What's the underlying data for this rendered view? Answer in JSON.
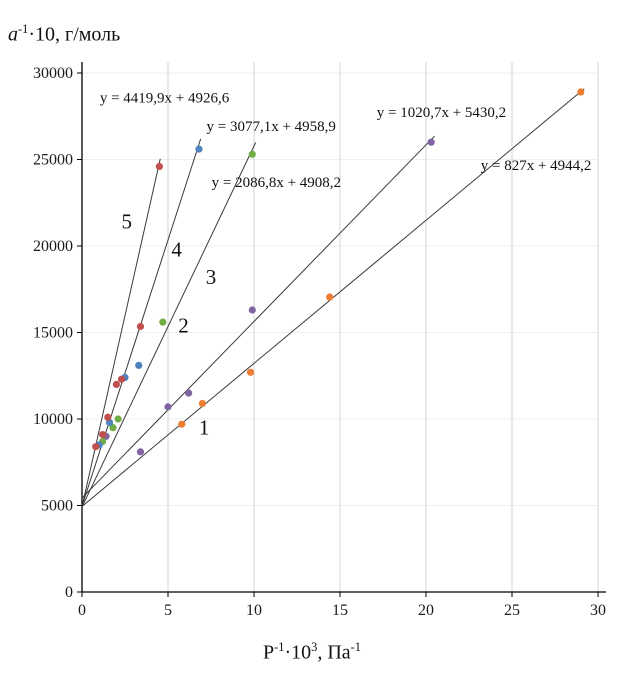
{
  "axes": {
    "y_title": {
      "base": "a",
      "sup": "-1",
      "rest": "·10, г/моль"
    },
    "x_title": {
      "base": "P",
      "sup1": "-1",
      "mid": "·10",
      "sup2": "3",
      "rest": ", Па",
      "sup3": "-1"
    }
  },
  "chart_data": {
    "type": "scatter",
    "title": "",
    "xlabel": "P^-1 · 10^3, Па^-1",
    "ylabel": "a^-1 · 10, г/моль",
    "xlim": [
      0,
      30
    ],
    "ylim": [
      0,
      30000
    ],
    "x_ticks": [
      0,
      5,
      10,
      15,
      20,
      25,
      30
    ],
    "y_ticks": [
      0,
      5000,
      10000,
      15000,
      20000,
      25000,
      30000
    ],
    "grid": true,
    "legend": "none",
    "series": [
      {
        "label": "1",
        "color": "#ED7D31",
        "equation": "y = 827x + 4944,2",
        "slope": 827,
        "intercept": 4944.2,
        "line_end_x": 29.2,
        "points": [
          [
            5.8,
            9700
          ],
          [
            7.0,
            10900
          ],
          [
            9.8,
            12700
          ],
          [
            14.4,
            17050
          ],
          [
            29.0,
            28900
          ]
        ]
      },
      {
        "label": "2",
        "color": "#8064A2",
        "equation": "y = 1020,7x + 5430,2",
        "slope": 1020.7,
        "intercept": 5430.2,
        "line_end_x": 20.5,
        "points": [
          [
            1.4,
            9000
          ],
          [
            3.4,
            8100
          ],
          [
            5.0,
            10700
          ],
          [
            6.2,
            11500
          ],
          [
            9.9,
            16300
          ],
          [
            20.3,
            26000
          ]
        ]
      },
      {
        "label": "3",
        "color": "#70AD47",
        "equation": "y = 2086,8x + 4908,2",
        "slope": 2086.8,
        "intercept": 4908.2,
        "line_end_x": 10.1,
        "points": [
          [
            1.2,
            8700
          ],
          [
            1.8,
            9500
          ],
          [
            2.1,
            10000
          ],
          [
            4.7,
            15600
          ],
          [
            9.9,
            25300
          ]
        ]
      },
      {
        "label": "4",
        "color": "#4F81BD",
        "equation": "y = 3077,1x + 4958,9",
        "slope": 3077.1,
        "intercept": 4958.9,
        "line_end_x": 6.9,
        "points": [
          [
            1.0,
            8500
          ],
          [
            1.6,
            9800
          ],
          [
            2.5,
            12400
          ],
          [
            3.3,
            13100
          ],
          [
            6.8,
            25600
          ]
        ]
      },
      {
        "label": "5",
        "color": "#C0504D",
        "equation": "y = 4419,9x + 4926,6",
        "slope": 4419.9,
        "intercept": 4926.6,
        "line_end_x": 4.55,
        "points": [
          [
            0.8,
            8400
          ],
          [
            1.2,
            9100
          ],
          [
            1.5,
            10100
          ],
          [
            2.0,
            12000
          ],
          [
            2.3,
            12300
          ],
          [
            3.4,
            15350
          ],
          [
            4.5,
            24600
          ]
        ]
      }
    ],
    "annotations": [
      {
        "text": "y = 4419,9x + 4926,6",
        "x": 4.8,
        "y": 28300,
        "kind": "equation"
      },
      {
        "text": "y = 3077,1x + 4958,9",
        "x": 11.0,
        "y": 26650,
        "kind": "equation"
      },
      {
        "text": "y = 1020,7x + 5430,2",
        "x": 20.9,
        "y": 27450,
        "kind": "equation"
      },
      {
        "text": "y = 2086,8x + 4908,2",
        "x": 11.3,
        "y": 23400,
        "kind": "equation"
      },
      {
        "text": "y = 827x + 4944,2",
        "x": 26.4,
        "y": 24400,
        "kind": "equation"
      },
      {
        "text": "5",
        "x": 2.6,
        "y": 21000,
        "kind": "series-number"
      },
      {
        "text": "4",
        "x": 5.5,
        "y": 19400,
        "kind": "series-number"
      },
      {
        "text": "3",
        "x": 7.5,
        "y": 17800,
        "kind": "series-number"
      },
      {
        "text": "2",
        "x": 5.9,
        "y": 15000,
        "kind": "series-number"
      },
      {
        "text": "1",
        "x": 7.1,
        "y": 9100,
        "kind": "series-number"
      }
    ]
  }
}
